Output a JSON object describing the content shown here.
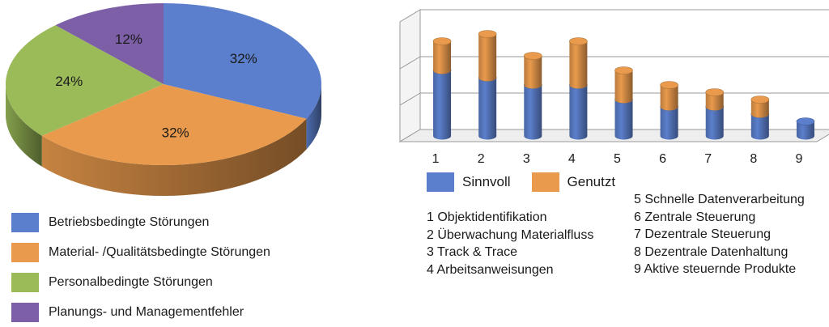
{
  "chart_data": [
    {
      "type": "pie",
      "slices": [
        {
          "label": "Betriebsbedingte Störungen",
          "value": 32,
          "display": "32%",
          "color": "#5b7fcc"
        },
        {
          "label": "Material- /Qualitätsbedingte Störungen",
          "value": 32,
          "display": "32%",
          "color": "#e99a4c"
        },
        {
          "label": "Personalbedingte Störungen",
          "value": 24,
          "display": "24%",
          "color": "#9bbb59"
        },
        {
          "label": "Planungs- und Managementfehler",
          "value": 12,
          "display": "12%",
          "color": "#7d5fa7"
        }
      ],
      "legend_position": "bottom"
    },
    {
      "type": "bar",
      "stacked": true,
      "categories": [
        "1",
        "2",
        "3",
        "4",
        "5",
        "6",
        "7",
        "8",
        "9"
      ],
      "series": [
        {
          "name": "Sinnvoll",
          "values": [
            18,
            16,
            14,
            14,
            10,
            8,
            8,
            6,
            4
          ],
          "color": "#5b7fcc"
        },
        {
          "name": "Genutzt",
          "values": [
            8,
            12,
            8,
            12,
            8,
            6,
            4,
            4,
            0
          ],
          "color": "#e99a4c"
        }
      ],
      "ylim": [
        0,
        30
      ],
      "grid": true,
      "legend_position": "bottom",
      "category_legend": {
        "left": [
          "1 Objektidentifikation",
          "2 Überwachung Materialfluss",
          "3 Track & Trace",
          "4 Arbeitsanweisungen"
        ],
        "right": [
          "5 Schnelle Datenverarbeitung",
          "6 Zentrale Steuerung",
          "7 Dezentrale Steuerung",
          "8 Dezentrale Datenhaltung",
          "9 Aktive steuernde Produkte"
        ]
      }
    }
  ]
}
